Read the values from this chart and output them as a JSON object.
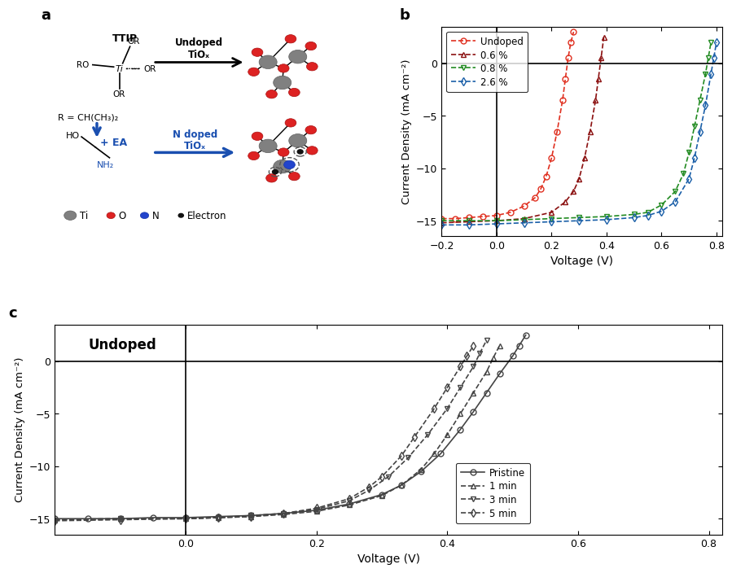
{
  "panel_b": {
    "xlabel": "Voltage (V)",
    "ylabel": "Current Density (mA cm⁻²)",
    "xlim": [
      -0.2,
      0.82
    ],
    "ylim": [
      -16.5,
      3.5
    ],
    "yticks": [
      -15,
      -10,
      -5,
      0
    ],
    "xticks": [
      -0.2,
      0.0,
      0.2,
      0.4,
      0.6,
      0.8
    ],
    "series": [
      {
        "label": "Undoped",
        "color": "#e03020",
        "marker": "o",
        "V": [
          -0.2,
          -0.15,
          -0.1,
          -0.05,
          0.0,
          0.05,
          0.1,
          0.14,
          0.16,
          0.18,
          0.2,
          0.22,
          0.24,
          0.25,
          0.26,
          0.27,
          0.28
        ],
        "J": [
          -14.8,
          -14.8,
          -14.7,
          -14.6,
          -14.5,
          -14.2,
          -13.6,
          -12.8,
          -12.0,
          -10.8,
          -9.0,
          -6.5,
          -3.5,
          -1.5,
          0.5,
          2.0,
          3.0
        ]
      },
      {
        "label": "0.6 %",
        "color": "#8B1010",
        "marker": "^",
        "V": [
          -0.2,
          -0.1,
          0.0,
          0.1,
          0.2,
          0.25,
          0.28,
          0.3,
          0.32,
          0.34,
          0.36,
          0.37,
          0.38,
          0.39
        ],
        "J": [
          -15.2,
          -15.1,
          -15.0,
          -14.8,
          -14.2,
          -13.2,
          -12.2,
          -11.0,
          -9.0,
          -6.5,
          -3.5,
          -1.5,
          0.5,
          2.5
        ]
      },
      {
        "label": "0.8 %",
        "color": "#228B22",
        "marker": "v",
        "V": [
          -0.2,
          -0.1,
          0.0,
          0.1,
          0.2,
          0.3,
          0.4,
          0.5,
          0.55,
          0.6,
          0.65,
          0.68,
          0.7,
          0.72,
          0.74,
          0.76,
          0.77,
          0.78
        ],
        "J": [
          -15.0,
          -15.0,
          -15.0,
          -14.9,
          -14.8,
          -14.7,
          -14.6,
          -14.4,
          -14.2,
          -13.5,
          -12.2,
          -10.5,
          -8.5,
          -6.0,
          -3.5,
          -1.0,
          0.5,
          2.0
        ]
      },
      {
        "label": "2.6 %",
        "color": "#1a5fa8",
        "marker": "D",
        "V": [
          -0.2,
          -0.1,
          0.0,
          0.1,
          0.2,
          0.3,
          0.4,
          0.5,
          0.55,
          0.6,
          0.65,
          0.7,
          0.72,
          0.74,
          0.76,
          0.78,
          0.79,
          0.8
        ],
        "J": [
          -15.4,
          -15.4,
          -15.3,
          -15.2,
          -15.1,
          -15.0,
          -14.9,
          -14.7,
          -14.5,
          -14.1,
          -13.2,
          -11.0,
          -9.0,
          -6.5,
          -4.0,
          -1.0,
          0.5,
          2.0
        ]
      }
    ]
  },
  "panel_c": {
    "xlabel": "Voltage (V)",
    "ylabel": "Current Density (mA cm⁻²)",
    "xlim": [
      -0.2,
      0.82
    ],
    "ylim": [
      -16.5,
      3.5
    ],
    "yticks": [
      -15,
      -10,
      -5,
      0
    ],
    "xticks": [
      0.0,
      0.2,
      0.4,
      0.6,
      0.8
    ],
    "title_text": "Undoped",
    "series": [
      {
        "label": "Pristine",
        "color": "#444444",
        "marker": "o",
        "linestyle": "-",
        "V": [
          -0.2,
          -0.15,
          -0.1,
          -0.05,
          0.0,
          0.05,
          0.1,
          0.15,
          0.2,
          0.25,
          0.3,
          0.33,
          0.36,
          0.39,
          0.42,
          0.44,
          0.46,
          0.48,
          0.5,
          0.51,
          0.52
        ],
        "J": [
          -15.0,
          -15.0,
          -15.0,
          -14.9,
          -14.9,
          -14.8,
          -14.7,
          -14.5,
          -14.2,
          -13.6,
          -12.7,
          -11.8,
          -10.5,
          -8.8,
          -6.5,
          -4.8,
          -3.0,
          -1.2,
          0.5,
          1.5,
          2.5
        ]
      },
      {
        "label": "1 min",
        "color": "#444444",
        "marker": "^",
        "linestyle": "--",
        "V": [
          -0.2,
          -0.1,
          0.0,
          0.05,
          0.1,
          0.15,
          0.2,
          0.25,
          0.3,
          0.33,
          0.36,
          0.38,
          0.4,
          0.42,
          0.44,
          0.46,
          0.47,
          0.48
        ],
        "J": [
          -15.1,
          -15.0,
          -15.0,
          -14.9,
          -14.8,
          -14.6,
          -14.3,
          -13.7,
          -12.8,
          -11.8,
          -10.3,
          -8.8,
          -7.0,
          -5.0,
          -3.0,
          -1.0,
          0.3,
          1.5
        ]
      },
      {
        "label": "3 min",
        "color": "#444444",
        "marker": "v",
        "linestyle": "--",
        "V": [
          -0.2,
          -0.1,
          0.0,
          0.05,
          0.1,
          0.15,
          0.2,
          0.25,
          0.28,
          0.31,
          0.34,
          0.37,
          0.4,
          0.42,
          0.44,
          0.45,
          0.46
        ],
        "J": [
          -15.1,
          -15.0,
          -15.0,
          -14.9,
          -14.7,
          -14.5,
          -14.1,
          -13.3,
          -12.3,
          -11.0,
          -9.2,
          -7.0,
          -4.5,
          -2.5,
          -0.5,
          0.8,
          2.0
        ]
      },
      {
        "label": "5 min",
        "color": "#444444",
        "marker": "D",
        "linestyle": "--",
        "V": [
          -0.2,
          -0.1,
          0.0,
          0.05,
          0.1,
          0.15,
          0.2,
          0.25,
          0.28,
          0.3,
          0.33,
          0.35,
          0.38,
          0.4,
          0.42,
          0.43,
          0.44
        ],
        "J": [
          -15.2,
          -15.1,
          -15.0,
          -14.9,
          -14.8,
          -14.5,
          -14.0,
          -13.1,
          -12.0,
          -11.0,
          -9.0,
          -7.2,
          -4.5,
          -2.5,
          -0.5,
          0.5,
          1.5
        ]
      }
    ]
  }
}
